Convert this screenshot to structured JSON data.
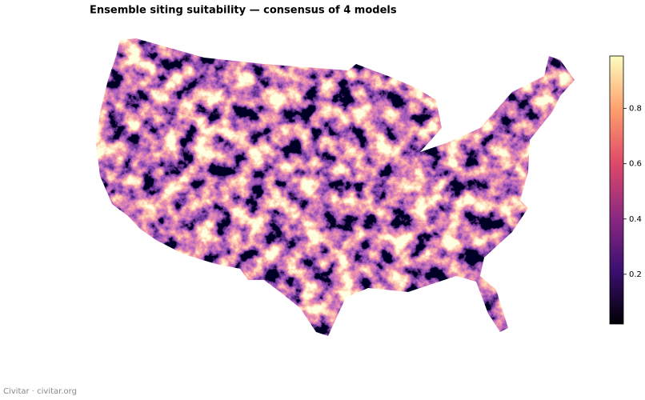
{
  "title": "Ensemble siting suitability — consensus of 4 models",
  "colorbar": {
    "lim": [
      0.02,
      0.99
    ],
    "ticks": [
      0.2,
      0.4,
      0.6,
      0.8
    ]
  },
  "footer": "Civitar · civitar.org"
}
